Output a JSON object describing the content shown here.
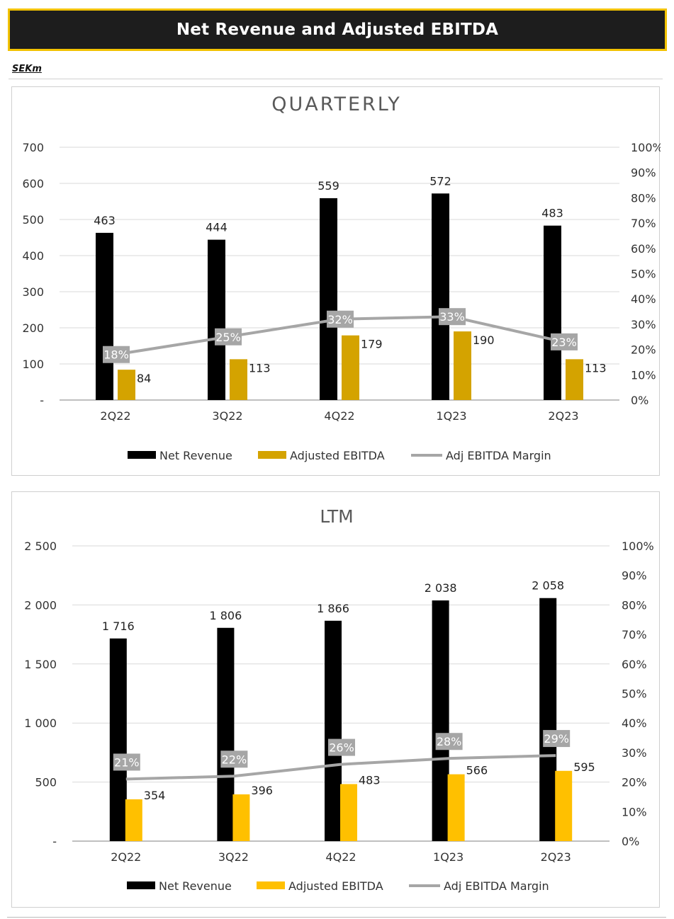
{
  "header": {
    "title": "Net Revenue and Adjusted EBITDA",
    "unit": "SEKm"
  },
  "colors": {
    "title_bar_bg": "#1d1d1d",
    "title_bar_border": "#f2c200",
    "net_revenue": "#000000",
    "ebitda_quarterly": "#d4a300",
    "ebitda_ltm": "#ffc000",
    "margin_line": "#a6a6a6"
  },
  "chart_data": [
    {
      "type": "bar",
      "title": "QUARTERLY",
      "categories": [
        "2Q22",
        "3Q22",
        "4Q22",
        "1Q23",
        "2Q23"
      ],
      "series": [
        {
          "name": "Net Revenue",
          "kind": "bar",
          "axis": "left",
          "values": [
            463,
            444,
            559,
            572,
            483
          ],
          "labels": [
            "463",
            "444",
            "559",
            "572",
            "483"
          ]
        },
        {
          "name": "Adjusted EBITDA",
          "kind": "bar",
          "axis": "left",
          "values": [
            84,
            113,
            179,
            190,
            113
          ],
          "labels": [
            "84",
            "113",
            "179",
            "190",
            "113"
          ]
        },
        {
          "name": "Adj EBITDA Margin",
          "kind": "line",
          "axis": "right",
          "values": [
            18,
            25,
            32,
            33,
            23
          ],
          "labels": [
            "18%",
            "25%",
            "32%",
            "33%",
            "23%"
          ]
        }
      ],
      "y_left": {
        "ylim": [
          0,
          700
        ],
        "ticks": [
          "-",
          "100",
          "200",
          "300",
          "400",
          "500",
          "600",
          "700"
        ]
      },
      "y_right": {
        "ylim": [
          0,
          100
        ],
        "ticks": [
          "0%",
          "10%",
          "20%",
          "30%",
          "40%",
          "50%",
          "60%",
          "70%",
          "80%",
          "90%",
          "100%"
        ]
      },
      "grid": true,
      "legend_position": "bottom"
    },
    {
      "type": "bar",
      "title": "LTM",
      "categories": [
        "2Q22",
        "3Q22",
        "4Q22",
        "1Q23",
        "2Q23"
      ],
      "series": [
        {
          "name": "Net Revenue",
          "kind": "bar",
          "axis": "left",
          "values": [
            1716,
            1806,
            1866,
            2038,
            2058
          ],
          "labels": [
            "1 716",
            "1 806",
            "1 866",
            "2 038",
            "2 058"
          ]
        },
        {
          "name": "Adjusted EBITDA",
          "kind": "bar",
          "axis": "left",
          "values": [
            354,
            396,
            483,
            566,
            595
          ],
          "labels": [
            "354",
            "396",
            "483",
            "566",
            "595"
          ]
        },
        {
          "name": "Adj EBITDA Margin",
          "kind": "line",
          "axis": "right",
          "values": [
            21,
            22,
            26,
            28,
            29
          ],
          "labels": [
            "21%",
            "22%",
            "26%",
            "28%",
            "29%"
          ]
        }
      ],
      "y_left": {
        "ylim": [
          0,
          2500
        ],
        "ticks": [
          "-",
          "500",
          "1 000",
          "1 500",
          "2 000",
          "2 500"
        ]
      },
      "y_right": {
        "ylim": [
          0,
          100
        ],
        "ticks": [
          "0%",
          "10%",
          "20%",
          "30%",
          "40%",
          "50%",
          "60%",
          "70%",
          "80%",
          "90%",
          "100%"
        ]
      },
      "grid": true,
      "legend_position": "bottom"
    }
  ]
}
